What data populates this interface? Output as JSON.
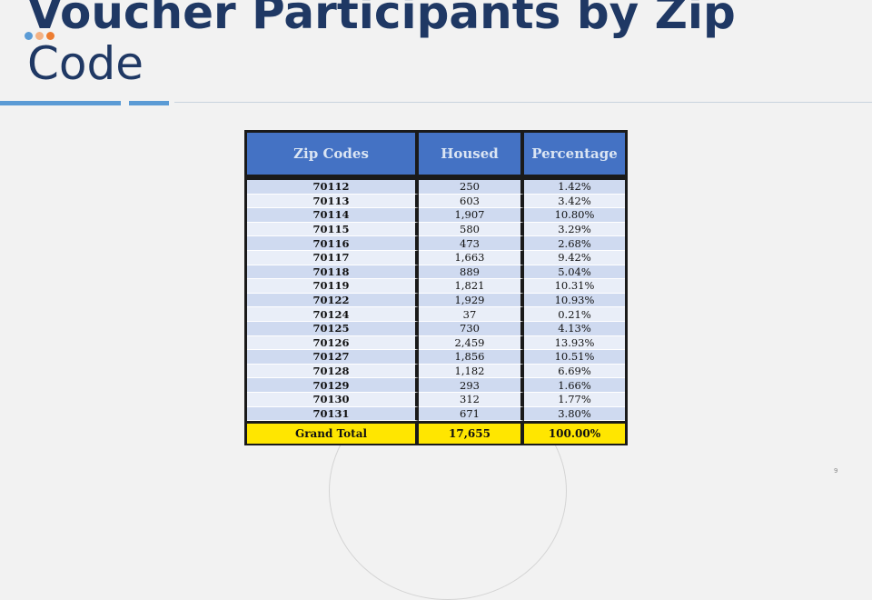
{
  "slide": {
    "title_line1": "Voucher Participants by Zip",
    "title_line2": "Code",
    "page_number": "9",
    "accent_colors": [
      "#5b9bd5",
      "#f4b183",
      "#ed7d31",
      "#1f3864"
    ]
  },
  "table": {
    "headers": [
      "Zip Codes",
      "Housed",
      "Percentage"
    ],
    "rows": [
      [
        "70112",
        "250",
        "1.42%"
      ],
      [
        "70113",
        "603",
        "3.42%"
      ],
      [
        "70114",
        "1,907",
        "10.80%"
      ],
      [
        "70115",
        "580",
        "3.29%"
      ],
      [
        "70116",
        "473",
        "2.68%"
      ],
      [
        "70117",
        "1,663",
        "9.42%"
      ],
      [
        "70118",
        "889",
        "5.04%"
      ],
      [
        "70119",
        "1,821",
        "10.31%"
      ],
      [
        "70122",
        "1,929",
        "10.93%"
      ],
      [
        "70124",
        "37",
        "0.21%"
      ],
      [
        "70125",
        "730",
        "4.13%"
      ],
      [
        "70126",
        "2,459",
        "13.93%"
      ],
      [
        "70127",
        "1,856",
        "10.51%"
      ],
      [
        "70128",
        "1,182",
        "6.69%"
      ],
      [
        "70129",
        "293",
        "1.66%"
      ],
      [
        "70130",
        "312",
        "1.77%"
      ],
      [
        "70131",
        "671",
        "3.80%"
      ]
    ],
    "total": [
      "Grand Total",
      "17,655",
      "100.00%"
    ]
  }
}
